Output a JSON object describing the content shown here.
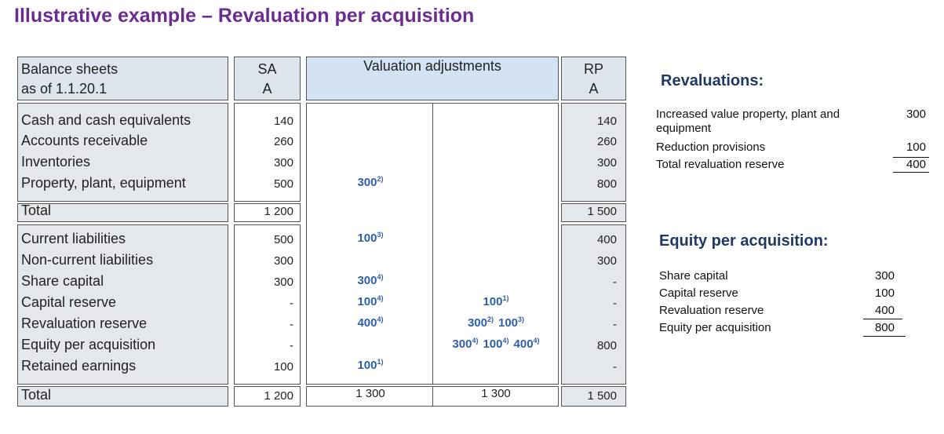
{
  "title": "Illustrative example – Revaluation per acquisition",
  "table": {
    "header": {
      "label": [
        "Balance sheets",
        "as of 1.1.20.1"
      ],
      "sa": [
        "SA",
        "A"
      ],
      "adjustments": "Valuation adjustments",
      "rp": [
        "RP",
        "A"
      ]
    },
    "rows": [
      {
        "label": "Cash and cash equivalents",
        "sa": 140,
        "debit": null,
        "credit": null,
        "rp": 140
      },
      {
        "label": "Accounts receivable",
        "sa": 260,
        "debit": null,
        "credit": null,
        "rp": 260
      },
      {
        "label": "Inventories",
        "sa": 300,
        "debit": null,
        "credit": null,
        "rp": 300
      },
      {
        "label": "Property, plant, equipment",
        "sa": 500,
        "debit": [
          {
            "value": 300,
            "note": "2)"
          }
        ],
        "credit": null,
        "rp": 800
      },
      {
        "label": "Total",
        "sa": "1 200",
        "debit": null,
        "credit": null,
        "rp": "1 500"
      },
      {
        "label": "Current liabilities",
        "sa": 500,
        "debit": [
          {
            "value": 100,
            "note": "3)"
          }
        ],
        "credit": null,
        "rp": 400
      },
      {
        "label": "Non-current liabilities",
        "sa": 300,
        "debit": null,
        "credit": null,
        "rp": 300
      },
      {
        "label": "Share capital",
        "sa": 300,
        "debit": [
          {
            "value": 300,
            "note": "4)"
          }
        ],
        "credit": null,
        "rp": "-"
      },
      {
        "label": "Capital reserve",
        "sa": "-",
        "debit": [
          {
            "value": 100,
            "note": "4)"
          }
        ],
        "credit": [
          {
            "value": 100,
            "note": "1)"
          }
        ],
        "rp": "-"
      },
      {
        "label": "Revaluation reserve",
        "sa": "-",
        "debit": [
          {
            "value": 400,
            "note": "4)"
          }
        ],
        "credit": [
          {
            "value": 300,
            "note": "2)"
          },
          {
            "value": 100,
            "note": "3)"
          }
        ],
        "rp": "-"
      },
      {
        "label": "Equity per acquisition",
        "sa": "-",
        "debit": null,
        "credit": [
          {
            "value": 300,
            "note": "4)"
          },
          {
            "value": 100,
            "note": "4)"
          },
          {
            "value": 400,
            "note": "4)"
          }
        ],
        "rp": 800
      },
      {
        "label": "Retained earnings",
        "sa": 100,
        "debit": [
          {
            "value": 100,
            "note": "1)"
          }
        ],
        "credit": null,
        "rp": "-"
      },
      {
        "label": "Total",
        "sa": "1 200",
        "debit": "1 300",
        "credit": "1 300",
        "rp": "1 500"
      }
    ]
  },
  "revaluations": {
    "heading": "Revaluations:",
    "items": [
      {
        "label": "Increased value property, plant and equipment",
        "value": 300
      },
      {
        "label": "Reduction provisions",
        "value": 100
      },
      {
        "label": "Total revaluation reserve",
        "value": 400
      }
    ]
  },
  "equity": {
    "heading": "Equity per acquisition:",
    "items": [
      {
        "label": "Share capital",
        "value": 300
      },
      {
        "label": "Capital reserve",
        "value": 100
      },
      {
        "label": "Revaluation reserve",
        "value": 400
      },
      {
        "label": "Equity per acquisition",
        "value": 800
      }
    ]
  }
}
